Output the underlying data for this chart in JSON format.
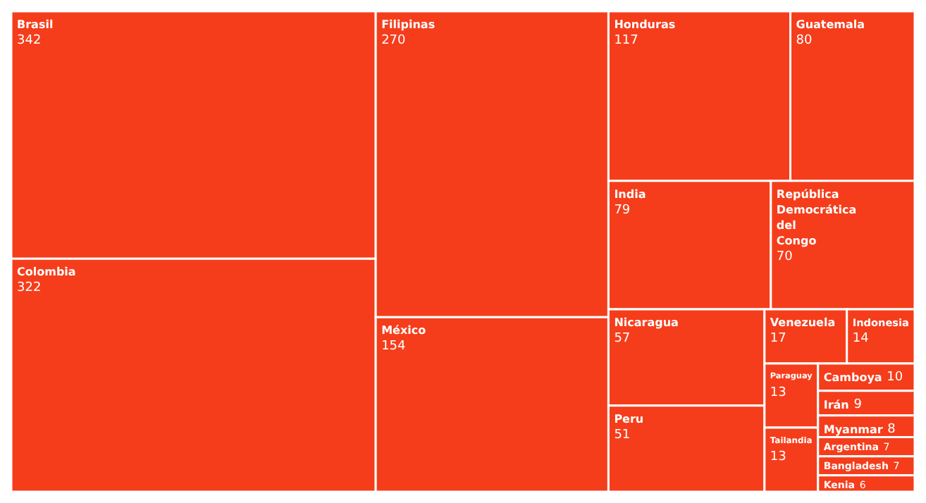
{
  "chart_data": {
    "type": "other",
    "categories": [
      "Brasil",
      "Colombia",
      "Filipinas",
      "México",
      "Honduras",
      "Guatemala",
      "India",
      "República Democrática del Congo",
      "Nicaragua",
      "Peru",
      "Venezuela",
      "Indonesia",
      "Paraguay",
      "Tailandia",
      "Camboya",
      "Irán",
      "Myanmar",
      "Argentina",
      "Bangladesh",
      "Kenia"
    ],
    "values": [
      342,
      322,
      270,
      154,
      117,
      80,
      79,
      70,
      57,
      51,
      17,
      14,
      13,
      13,
      10,
      9,
      8,
      7,
      7,
      6
    ],
    "color": "#f53d1b",
    "data_labels": true
  }
}
